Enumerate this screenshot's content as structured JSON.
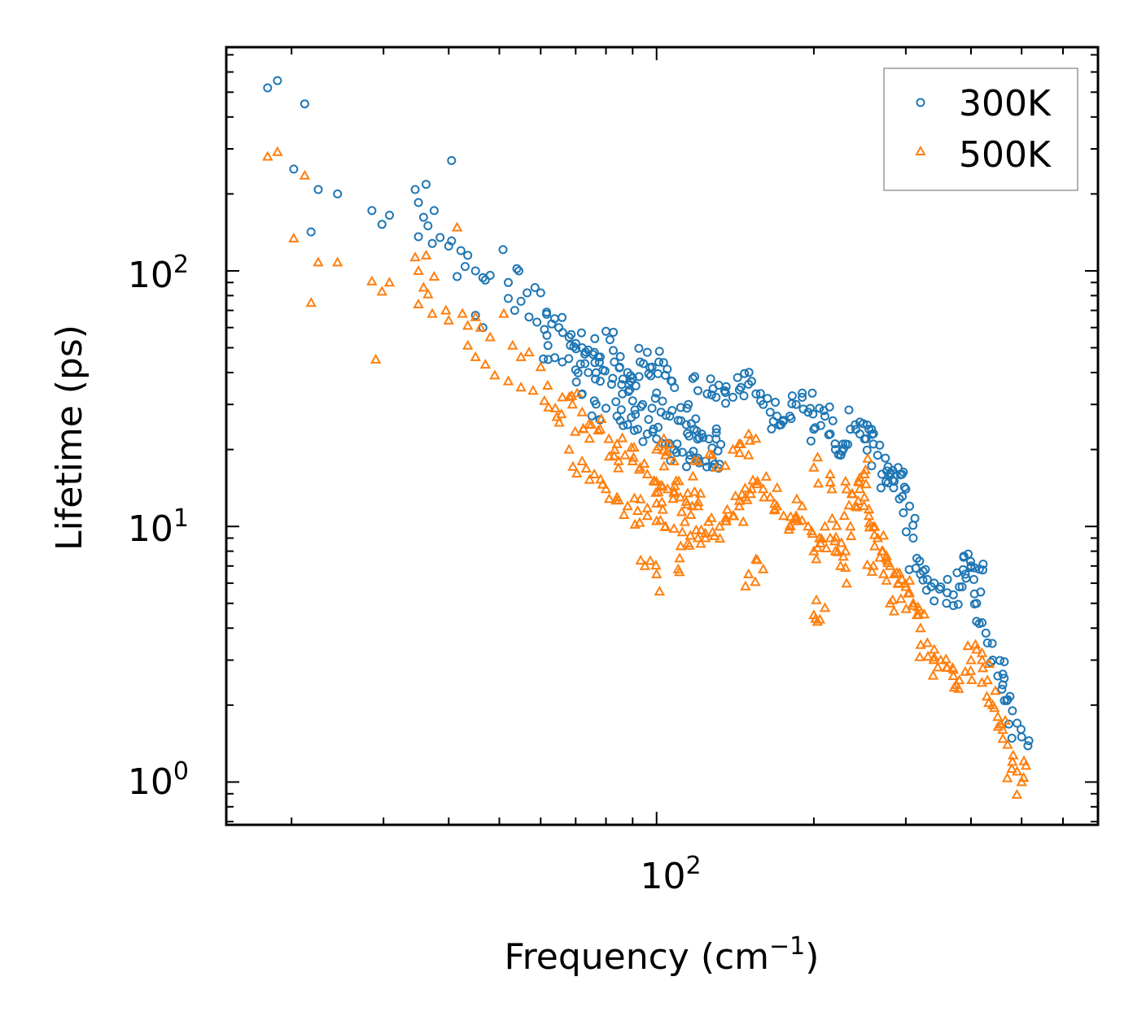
{
  "chart_data": {
    "type": "scatter",
    "scale": {
      "x": "log",
      "y": "log"
    },
    "xlabel": "Frequency (cm",
    "xlabel_exponent": "−1",
    "xlabel_suffix": ")",
    "ylabel": "Lifetime (ps)",
    "xlim": [
      15,
      700
    ],
    "ylim": [
      0.68,
      750
    ],
    "x_ticks": [
      {
        "base": "10",
        "exp": "2",
        "value": 100
      }
    ],
    "y_ticks": [
      {
        "base": "10",
        "exp": "0",
        "value": 1
      },
      {
        "base": "10",
        "exp": "1",
        "value": 10
      },
      {
        "base": "10",
        "exp": "2",
        "value": 100
      }
    ],
    "legend_position": "top-right",
    "colors": {
      "s300": "#1f77b4",
      "s500": "#ff7f0e"
    },
    "series": [
      {
        "name": "300K",
        "marker": "circle",
        "points": [
          [
            18,
            520
          ],
          [
            18.8,
            555
          ],
          [
            21.2,
            450
          ],
          [
            20.2,
            250
          ],
          [
            22.5,
            208
          ],
          [
            24.5,
            200
          ],
          [
            21.8,
            142
          ],
          [
            28.5,
            172
          ],
          [
            29.8,
            152
          ],
          [
            30.8,
            165
          ],
          [
            34.5,
            208
          ],
          [
            35,
            185
          ],
          [
            36.2,
            218
          ],
          [
            35.8,
            162
          ],
          [
            37.5,
            172
          ],
          [
            35,
            136
          ],
          [
            36.5,
            150
          ],
          [
            37.2,
            128
          ],
          [
            38.5,
            135
          ],
          [
            40,
            125
          ],
          [
            40.5,
            131
          ],
          [
            42.2,
            120
          ],
          [
            43.5,
            115
          ],
          [
            40.5,
            270
          ],
          [
            41.5,
            95
          ],
          [
            43,
            104
          ],
          [
            45,
            100
          ],
          [
            46.5,
            94
          ],
          [
            47,
            92
          ],
          [
            48,
            96
          ],
          [
            50.8,
            121
          ],
          [
            52,
            90
          ],
          [
            54,
            102
          ],
          [
            54.5,
            100
          ],
          [
            55,
            76
          ],
          [
            56.5,
            82
          ],
          [
            58.5,
            86
          ],
          [
            60,
            82
          ],
          [
            45,
            67
          ],
          [
            46.5,
            60
          ],
          [
            52,
            78
          ],
          [
            53.5,
            70
          ],
          [
            57,
            66
          ],
          [
            59,
            63
          ],
          [
            61,
            59
          ],
          [
            63,
            62
          ],
          [
            65,
            60
          ],
          [
            68,
            55
          ],
          [
            70,
            52
          ],
          [
            72,
            50
          ],
          [
            74,
            49
          ],
          [
            76,
            48
          ],
          [
            78,
            46
          ],
          [
            80,
            58
          ],
          [
            83,
            44
          ],
          [
            85,
            42
          ],
          [
            88,
            40
          ],
          [
            90,
            38
          ],
          [
            93,
            44
          ],
          [
            96,
            48
          ],
          [
            98,
            42
          ],
          [
            101,
            44
          ],
          [
            104,
            39
          ],
          [
            107,
            37
          ],
          [
            62,
            45
          ],
          [
            66,
            44
          ],
          [
            70,
            41
          ],
          [
            74,
            40
          ],
          [
            78,
            37
          ],
          [
            82,
            36
          ],
          [
            86,
            33
          ],
          [
            90,
            31
          ],
          [
            94,
            30
          ],
          [
            98,
            29
          ],
          [
            102,
            28
          ],
          [
            106,
            27
          ],
          [
            110,
            26
          ],
          [
            114,
            25
          ],
          [
            118,
            24
          ],
          [
            122,
            23
          ],
          [
            126,
            22
          ],
          [
            130,
            22
          ],
          [
            72,
            33
          ],
          [
            76,
            31
          ],
          [
            80,
            29
          ],
          [
            84,
            27
          ],
          [
            88,
            25
          ],
          [
            92,
            24
          ],
          [
            96,
            23
          ],
          [
            100,
            22
          ],
          [
            104,
            21
          ],
          [
            108,
            20
          ],
          [
            112,
            19.5
          ],
          [
            116,
            19
          ],
          [
            120,
            18.5
          ],
          [
            124,
            18
          ],
          [
            128,
            18
          ],
          [
            132,
            17.5
          ],
          [
            115,
            30
          ],
          [
            120,
            34
          ],
          [
            125,
            33
          ],
          [
            130,
            32
          ],
          [
            135,
            34
          ],
          [
            140,
            32
          ],
          [
            145,
            35
          ],
          [
            150,
            36
          ],
          [
            155,
            33
          ],
          [
            160,
            30
          ],
          [
            165,
            28
          ],
          [
            170,
            27
          ],
          [
            175,
            26
          ],
          [
            180,
            27
          ],
          [
            185,
            30
          ],
          [
            190,
            32
          ],
          [
            195,
            28
          ],
          [
            200,
            24
          ],
          [
            205,
            29
          ],
          [
            210,
            27
          ],
          [
            215,
            23
          ],
          [
            220,
            20
          ],
          [
            225,
            19
          ],
          [
            230,
            21
          ],
          [
            235,
            24
          ],
          [
            240,
            25
          ],
          [
            245,
            23
          ],
          [
            250,
            22
          ],
          [
            255,
            24
          ],
          [
            260,
            21
          ],
          [
            265,
            19
          ],
          [
            270,
            16
          ],
          [
            275,
            15
          ],
          [
            280,
            16
          ],
          [
            285,
            15
          ],
          [
            290,
            17
          ],
          [
            295,
            16
          ],
          [
            300,
            14
          ],
          [
            305,
            12
          ],
          [
            310,
            9
          ],
          [
            315,
            7.5
          ],
          [
            320,
            6.5
          ],
          [
            330,
            6.2
          ],
          [
            340,
            6.0
          ],
          [
            350,
            5.8
          ],
          [
            360,
            5.5
          ],
          [
            370,
            5.4
          ],
          [
            380,
            5.8
          ],
          [
            390,
            6.5
          ],
          [
            400,
            7.0
          ],
          [
            405,
            6.2
          ],
          [
            410,
            5.0
          ],
          [
            420,
            4.2
          ],
          [
            430,
            3.5
          ],
          [
            440,
            3.0
          ],
          [
            450,
            2.6
          ],
          [
            460,
            2.4
          ],
          [
            470,
            2.1
          ],
          [
            480,
            1.9
          ],
          [
            490,
            1.7
          ],
          [
            500,
            1.5
          ],
          [
            395,
            7.8
          ],
          [
            415,
            6.8
          ]
        ]
      },
      {
        "name": "500K",
        "marker": "triangle",
        "points": [
          [
            18,
            280
          ],
          [
            18.8,
            292
          ],
          [
            21.2,
            236
          ],
          [
            20.2,
            134
          ],
          [
            22.5,
            108
          ],
          [
            24.5,
            108
          ],
          [
            21.8,
            75
          ],
          [
            28.5,
            91
          ],
          [
            29.8,
            83
          ],
          [
            30.8,
            90
          ],
          [
            29,
            45
          ],
          [
            34.5,
            113
          ],
          [
            35,
            100
          ],
          [
            36.2,
            115
          ],
          [
            35.8,
            86
          ],
          [
            37.5,
            95
          ],
          [
            35,
            74
          ],
          [
            36.5,
            81
          ],
          [
            37.2,
            68
          ],
          [
            39.5,
            70
          ],
          [
            40,
            64
          ],
          [
            41.5,
            148
          ],
          [
            42.5,
            68
          ],
          [
            43.5,
            61
          ],
          [
            45,
            66
          ],
          [
            46,
            60
          ],
          [
            48,
            55
          ],
          [
            51,
            68
          ],
          [
            53,
            51
          ],
          [
            55,
            46
          ],
          [
            57,
            48
          ],
          [
            60,
            42
          ],
          [
            43.5,
            51
          ],
          [
            45,
            46
          ],
          [
            47,
            43
          ],
          [
            49,
            39
          ],
          [
            52,
            37
          ],
          [
            55,
            35
          ],
          [
            58,
            34
          ],
          [
            61,
            31
          ],
          [
            64,
            29
          ],
          [
            66,
            32
          ],
          [
            69,
            30
          ],
          [
            72,
            28
          ],
          [
            75,
            25
          ],
          [
            78,
            24
          ],
          [
            81,
            22
          ],
          [
            84,
            21
          ],
          [
            87,
            19
          ],
          [
            90,
            18
          ],
          [
            93,
            17
          ],
          [
            96,
            16
          ],
          [
            99,
            15
          ],
          [
            102,
            14.5
          ],
          [
            105,
            14
          ],
          [
            108,
            13.5
          ],
          [
            111,
            13
          ],
          [
            114,
            12.5
          ],
          [
            117,
            12
          ],
          [
            120,
            12
          ],
          [
            68,
            20
          ],
          [
            72,
            18
          ],
          [
            76,
            16
          ],
          [
            80,
            14
          ],
          [
            84,
            13
          ],
          [
            88,
            12
          ],
          [
            92,
            11.5
          ],
          [
            96,
            11
          ],
          [
            100,
            10.5
          ],
          [
            104,
            10
          ],
          [
            108,
            9.8
          ],
          [
            112,
            9.5
          ],
          [
            116,
            9.2
          ],
          [
            120,
            9
          ],
          [
            124,
            9
          ],
          [
            128,
            9.5
          ],
          [
            132,
            10
          ],
          [
            136,
            10.5
          ],
          [
            140,
            11
          ],
          [
            144,
            12
          ],
          [
            148,
            13
          ],
          [
            152,
            14
          ],
          [
            156,
            15
          ],
          [
            160,
            14
          ],
          [
            165,
            13
          ],
          [
            170,
            12
          ],
          [
            175,
            11
          ],
          [
            180,
            10
          ],
          [
            185,
            11
          ],
          [
            190,
            12
          ],
          [
            195,
            10
          ],
          [
            200,
            8
          ],
          [
            205,
            9
          ],
          [
            210,
            10
          ],
          [
            215,
            9
          ],
          [
            220,
            8
          ],
          [
            225,
            7
          ],
          [
            230,
            8
          ],
          [
            235,
            10
          ],
          [
            240,
            12
          ],
          [
            245,
            14
          ],
          [
            250,
            13
          ],
          [
            255,
            11
          ],
          [
            260,
            10
          ],
          [
            265,
            9
          ],
          [
            270,
            8
          ],
          [
            275,
            7.5
          ],
          [
            280,
            7
          ],
          [
            285,
            6.5
          ],
          [
            290,
            6
          ],
          [
            295,
            6.2
          ],
          [
            300,
            5.8
          ],
          [
            305,
            5.5
          ],
          [
            310,
            5
          ],
          [
            315,
            4.5
          ],
          [
            320,
            4
          ],
          [
            330,
            3.5
          ],
          [
            340,
            3.3
          ],
          [
            350,
            3.0
          ],
          [
            360,
            2.8
          ],
          [
            370,
            2.6
          ],
          [
            380,
            2.5
          ],
          [
            390,
            2.7
          ],
          [
            400,
            3.0
          ],
          [
            410,
            3.3
          ],
          [
            420,
            3.0
          ],
          [
            430,
            2.5
          ],
          [
            440,
            2.0
          ],
          [
            450,
            1.8
          ],
          [
            460,
            1.6
          ],
          [
            470,
            1.4
          ],
          [
            480,
            1.2
          ],
          [
            490,
            1.1
          ],
          [
            500,
            1.0
          ],
          [
            95,
            7
          ],
          [
            100,
            6.5
          ],
          [
            110,
            6.8
          ],
          [
            150,
            6.5
          ],
          [
            160,
            6.8
          ],
          [
            200,
            4.5
          ],
          [
            210,
            4.8
          ],
          [
            260,
            7
          ],
          [
            280,
            5
          ],
          [
            120,
            18
          ],
          [
            130,
            17
          ],
          [
            140,
            20
          ],
          [
            145,
            21
          ],
          [
            150,
            19
          ],
          [
            200,
            17
          ],
          [
            215,
            16
          ],
          [
            230,
            15
          ],
          [
            250,
            16
          ],
          [
            245,
            15.5
          ],
          [
            100,
            20
          ],
          [
            104,
            19
          ],
          [
            108,
            18
          ]
        ]
      }
    ]
  }
}
